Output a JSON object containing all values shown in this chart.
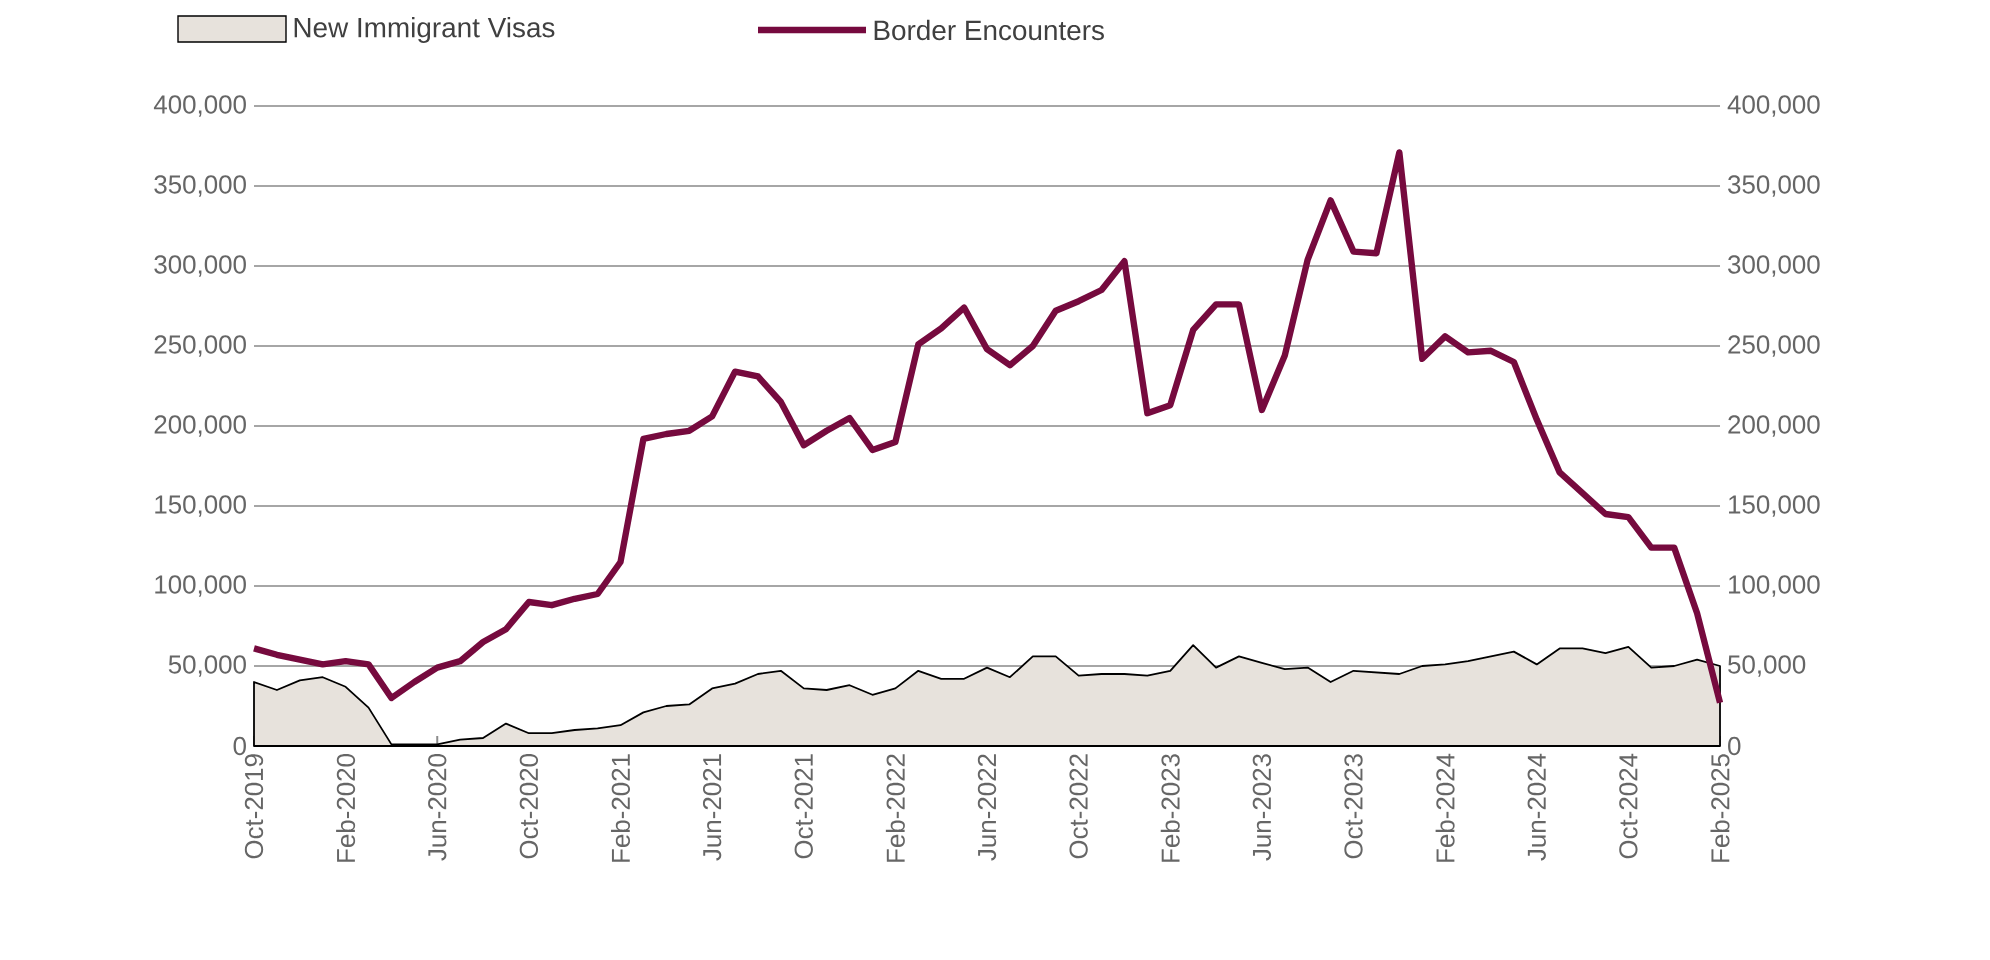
{
  "chart_data": {
    "type": "line",
    "x": [
      "2019-10",
      "2019-11",
      "2019-12",
      "2020-01",
      "2020-02",
      "2020-03",
      "2020-04",
      "2020-05",
      "2020-06",
      "2020-07",
      "2020-08",
      "2020-09",
      "2020-10",
      "2020-11",
      "2020-12",
      "2021-01",
      "2021-02",
      "2021-03",
      "2021-04",
      "2021-05",
      "2021-06",
      "2021-07",
      "2021-08",
      "2021-09",
      "2021-10",
      "2021-11",
      "2021-12",
      "2022-01",
      "2022-02",
      "2022-03",
      "2022-04",
      "2022-05",
      "2022-06",
      "2022-07",
      "2022-08",
      "2022-09",
      "2022-10",
      "2022-11",
      "2022-12",
      "2023-01",
      "2023-02",
      "2023-03",
      "2023-04",
      "2023-05",
      "2023-06",
      "2023-07",
      "2023-08",
      "2023-09",
      "2023-10",
      "2023-11",
      "2023-12",
      "2024-01",
      "2024-02",
      "2024-03",
      "2024-04",
      "2024-05",
      "2024-06",
      "2024-07",
      "2024-08",
      "2024-09",
      "2024-10",
      "2024-11",
      "2024-12",
      "2025-01",
      "2025-02"
    ],
    "series": [
      {
        "name": "New Immigrant Visas",
        "type": "area",
        "color": "#e7e2dc",
        "values": [
          40000,
          35000,
          41000,
          43000,
          37000,
          24000,
          1000,
          1000,
          1000,
          4000,
          5000,
          14000,
          8000,
          8000,
          10000,
          11000,
          13000,
          21000,
          25000,
          26000,
          36000,
          39000,
          45000,
          47000,
          36000,
          35000,
          38000,
          32000,
          36000,
          47000,
          42000,
          42000,
          49000,
          43000,
          56000,
          56000,
          44000,
          45000,
          45000,
          44000,
          47000,
          63000,
          49000,
          56000,
          52000,
          48000,
          49000,
          40000,
          47000,
          46000,
          45000,
          50000,
          51000,
          53000,
          56000,
          59000,
          51000,
          61000,
          61000,
          58000,
          62000,
          49000,
          50000,
          54000,
          50000
        ]
      },
      {
        "name": "Border Encounters",
        "axis": "y2",
        "color": "#760a3e",
        "values": [
          61000,
          57000,
          54000,
          51000,
          53000,
          51000,
          30000,
          40000,
          49000,
          53000,
          65000,
          73000,
          90000,
          88000,
          92000,
          95000,
          115000,
          192000,
          195000,
          197000,
          206000,
          234000,
          231000,
          215000,
          188000,
          197000,
          205000,
          185000,
          190000,
          251000,
          261000,
          274000,
          248000,
          238000,
          250000,
          272000,
          278000,
          285000,
          303000,
          208000,
          213000,
          260000,
          276000,
          276000,
          210000,
          244000,
          304000,
          341000,
          309000,
          308000,
          371000,
          242000,
          256000,
          246000,
          247000,
          240000,
          204000,
          171000,
          158000,
          145000,
          143000,
          124000,
          124000,
          83000,
          27000
        ]
      }
    ],
    "xlim": [
      "2019-10",
      "2025-02"
    ],
    "xticks": [
      {
        "value": "2019-10",
        "label": "Oct-2019"
      },
      {
        "value": "2020-02",
        "label": "Feb-2020"
      },
      {
        "value": "2020-06",
        "label": "Jun-2020"
      },
      {
        "value": "2020-10",
        "label": "Oct-2020"
      },
      {
        "value": "2021-02",
        "label": "Feb-2021"
      },
      {
        "value": "2021-06",
        "label": "Jun-2021"
      },
      {
        "value": "2021-10",
        "label": "Oct-2021"
      },
      {
        "value": "2022-02",
        "label": "Feb-2022"
      },
      {
        "value": "2022-06",
        "label": "Jun-2022"
      },
      {
        "value": "2022-10",
        "label": "Oct-2022"
      },
      {
        "value": "2023-02",
        "label": "Feb-2023"
      },
      {
        "value": "2023-06",
        "label": "Jun-2023"
      },
      {
        "value": "2023-10",
        "label": "Oct-2023"
      },
      {
        "value": "2024-02",
        "label": "Feb-2024"
      },
      {
        "value": "2024-06",
        "label": "Jun-2024"
      },
      {
        "value": "2024-10",
        "label": "Oct-2024"
      },
      {
        "value": "2025-02",
        "label": "Feb-2025"
      }
    ],
    "ylim": [
      0,
      400000
    ],
    "yticks": [
      0,
      {
        "value": 50000,
        "label": "50,000"
      },
      {
        "value": 100000,
        "label": "100,000"
      },
      {
        "value": 150000,
        "label": "150,000"
      },
      {
        "value": 200000,
        "label": "200,000"
      },
      {
        "value": 250000,
        "label": "250,000"
      },
      {
        "value": 300000,
        "label": "300,000"
      },
      {
        "value": 350000,
        "label": "350,000"
      },
      {
        "value": 400000,
        "label": "400,000"
      }
    ],
    "y2lim": [
      0,
      400000
    ],
    "y2ticks": [
      0,
      {
        "value": 50000,
        "label": "50,000"
      },
      {
        "value": 100000,
        "label": "100,000"
      },
      {
        "value": 150000,
        "label": "150,000"
      },
      {
        "value": 200000,
        "label": "200,000"
      },
      {
        "value": 250000,
        "label": "250,000"
      },
      {
        "value": 300000,
        "label": "300,000"
      },
      {
        "value": 350000,
        "label": "350,000"
      },
      {
        "value": 400000,
        "label": "400,000"
      }
    ],
    "grid": "y",
    "legend": "top left"
  }
}
